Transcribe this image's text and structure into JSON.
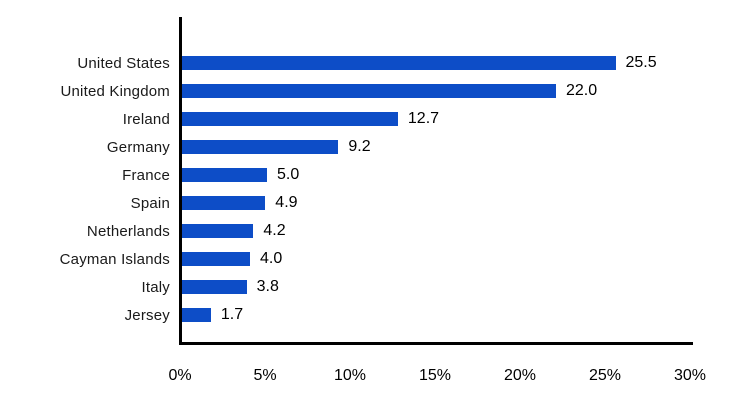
{
  "colors": {
    "bar": "#0d4dc7",
    "axis": "#000000",
    "category_text": "#1a1a1a",
    "value_text": "#000000",
    "background": "#ffffff"
  },
  "chart_data": {
    "type": "bar",
    "orientation": "horizontal",
    "title": "",
    "xlabel": "",
    "ylabel": "",
    "categories": [
      "United States",
      "United Kingdom",
      "Ireland",
      "Germany",
      "France",
      "Spain",
      "Netherlands",
      "Cayman Islands",
      "Italy",
      "Jersey"
    ],
    "values": [
      25.5,
      22.0,
      12.7,
      9.2,
      5.0,
      4.9,
      4.2,
      4.0,
      3.8,
      1.7
    ],
    "value_labels": [
      "25.5",
      "22.0",
      "12.7",
      "9.2",
      "5.0",
      "4.9",
      "4.2",
      "4.0",
      "3.8",
      "1.7"
    ],
    "x_ticks": [
      "0%",
      "5%",
      "10%",
      "15%",
      "20%",
      "25%",
      "30%"
    ],
    "x_tick_values": [
      0,
      5,
      10,
      15,
      20,
      25,
      30
    ],
    "xlim": [
      0,
      30
    ],
    "grid": false,
    "legend": false
  }
}
